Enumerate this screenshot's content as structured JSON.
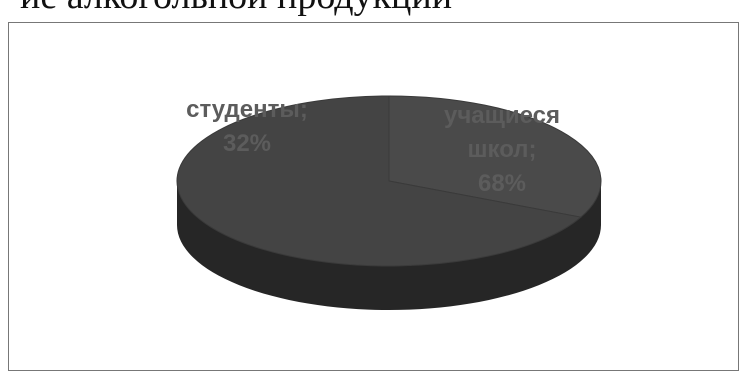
{
  "header": {
    "text": "ие алкогольной продукции"
  },
  "chart_data": {
    "type": "pie",
    "title": "",
    "legend": "none",
    "slices": [
      {
        "label_lines": [
          "студенты;",
          "32%"
        ],
        "category": "студенты",
        "value": 32,
        "color": "#4a4a4a",
        "label_color": "#5c5c5c"
      },
      {
        "label_lines": [
          "учащиеся",
          "школ;",
          "68%"
        ],
        "category": "учащиеся школ",
        "value": 68,
        "color": "#444444",
        "label_color": "#5c5c5c"
      }
    ],
    "edge_color": "#262626"
  }
}
